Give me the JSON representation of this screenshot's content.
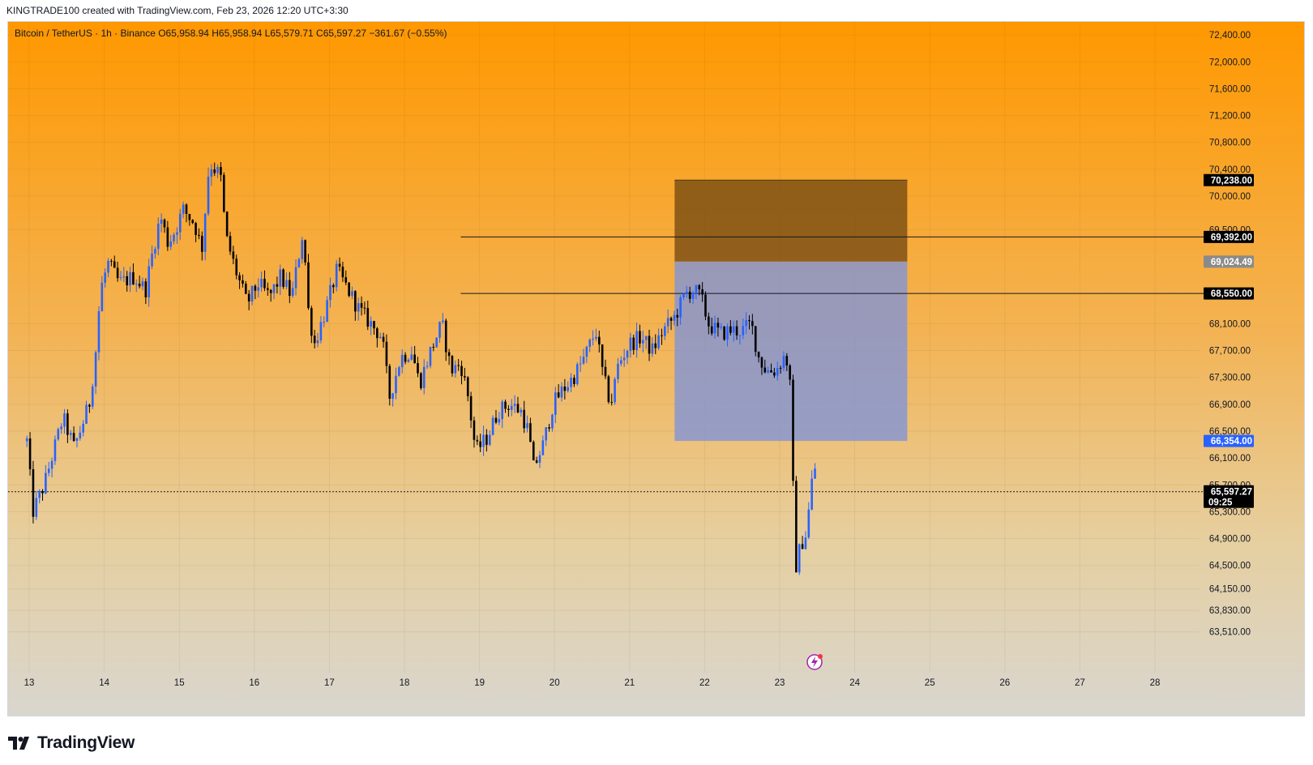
{
  "header": {
    "credit": "KINGTRADE100 created with TradingView.com, Feb 23, 2026 12:20 UTC+3:30",
    "legend": "Bitcoin / TetherUS · 1h · Binance  O65,958.94  H65,958.94  L65,579.71  C65,597.27  −361.67 (−0.55%)"
  },
  "brand": {
    "name": "TradingView",
    "icon": "tradingview-logo-icon"
  },
  "chart_data": {
    "type": "candlestick",
    "symbol": "Bitcoin / TetherUS",
    "interval": "1h",
    "exchange": "Binance",
    "ohlc_last": {
      "open": 65958.94,
      "high": 65958.94,
      "low": 65579.71,
      "close": 65597.27,
      "change": -361.67,
      "change_pct": -0.55
    },
    "x_ticks": [
      "13",
      "14",
      "15",
      "16",
      "17",
      "18",
      "19",
      "20",
      "21",
      "22",
      "23",
      "24",
      "25",
      "26",
      "27",
      "28"
    ],
    "y_ticks": [
      "72,400.00",
      "72,000.00",
      "71,600.00",
      "71,200.00",
      "70,800.00",
      "70,400.00",
      "70,000.00",
      "69,500.00",
      "68,100.00",
      "67,700.00",
      "67,300.00",
      "66,900.00",
      "66,500.00",
      "66,100.00",
      "65,700.00",
      "65,300.00",
      "64,900.00",
      "64,500.00",
      "64,150.00",
      "63,830.00",
      "63,510.00"
    ],
    "y_range": [
      63400,
      72600
    ],
    "horizontal_lines": [
      {
        "price": 69392.0,
        "label": "69,392.00",
        "start_day": 18.75
      },
      {
        "price": 68550.0,
        "label": "68,550.00",
        "start_day": 18.75
      }
    ],
    "position": {
      "type": "short",
      "start_day": 21.6,
      "end_day": 24.7,
      "stop": 70238.0,
      "stop_label": "70,238.00",
      "entry": 69024.49,
      "entry_label": "69,024.49",
      "target": 66354.0,
      "target_label": "66,354.00",
      "stop_color": "#7a4e13",
      "target_color": "#7f93d8"
    },
    "last_price": {
      "label": "65,597.27",
      "countdown": "09:25",
      "value": 65597.27
    },
    "anchors": [
      {
        "d": 12.97,
        "p": 66350
      },
      {
        "d": 13.05,
        "p": 65300
      },
      {
        "d": 13.2,
        "p": 65700
      },
      {
        "d": 13.45,
        "p": 66700
      },
      {
        "d": 13.6,
        "p": 66250
      },
      {
        "d": 13.8,
        "p": 66900
      },
      {
        "d": 13.88,
        "p": 67600
      },
      {
        "d": 13.95,
        "p": 68600
      },
      {
        "d": 14.05,
        "p": 69000
      },
      {
        "d": 14.2,
        "p": 68700
      },
      {
        "d": 14.4,
        "p": 68800
      },
      {
        "d": 14.55,
        "p": 68600
      },
      {
        "d": 14.65,
        "p": 69200
      },
      {
        "d": 14.75,
        "p": 69700
      },
      {
        "d": 14.85,
        "p": 69300
      },
      {
        "d": 14.95,
        "p": 69500
      },
      {
        "d": 15.05,
        "p": 69800
      },
      {
        "d": 15.2,
        "p": 69600
      },
      {
        "d": 15.3,
        "p": 69200
      },
      {
        "d": 15.4,
        "p": 70500
      },
      {
        "d": 15.55,
        "p": 70300
      },
      {
        "d": 15.62,
        "p": 69400
      },
      {
        "d": 15.75,
        "p": 68900
      },
      {
        "d": 15.9,
        "p": 68400
      },
      {
        "d": 16.05,
        "p": 68700
      },
      {
        "d": 16.2,
        "p": 68500
      },
      {
        "d": 16.35,
        "p": 68800
      },
      {
        "d": 16.5,
        "p": 68500
      },
      {
        "d": 16.65,
        "p": 69500
      },
      {
        "d": 16.72,
        "p": 68300
      },
      {
        "d": 16.8,
        "p": 67800
      },
      {
        "d": 16.95,
        "p": 68300
      },
      {
        "d": 17.1,
        "p": 68900
      },
      {
        "d": 17.25,
        "p": 68600
      },
      {
        "d": 17.4,
        "p": 68300
      },
      {
        "d": 17.55,
        "p": 68100
      },
      {
        "d": 17.7,
        "p": 67900
      },
      {
        "d": 17.8,
        "p": 67000
      },
      {
        "d": 17.95,
        "p": 67600
      },
      {
        "d": 18.1,
        "p": 67700
      },
      {
        "d": 18.2,
        "p": 67200
      },
      {
        "d": 18.35,
        "p": 67700
      },
      {
        "d": 18.5,
        "p": 68100
      },
      {
        "d": 18.62,
        "p": 67400
      },
      {
        "d": 18.75,
        "p": 67500
      },
      {
        "d": 18.85,
        "p": 67000
      },
      {
        "d": 18.95,
        "p": 66200
      },
      {
        "d": 19.1,
        "p": 66400
      },
      {
        "d": 19.25,
        "p": 66800
      },
      {
        "d": 19.4,
        "p": 66900
      },
      {
        "d": 19.55,
        "p": 66800
      },
      {
        "d": 19.65,
        "p": 66500
      },
      {
        "d": 19.72,
        "p": 65950
      },
      {
        "d": 19.85,
        "p": 66300
      },
      {
        "d": 19.98,
        "p": 66900
      },
      {
        "d": 20.1,
        "p": 67100
      },
      {
        "d": 20.25,
        "p": 67300
      },
      {
        "d": 20.4,
        "p": 67600
      },
      {
        "d": 20.55,
        "p": 68000
      },
      {
        "d": 20.65,
        "p": 67300
      },
      {
        "d": 20.75,
        "p": 66900
      },
      {
        "d": 20.85,
        "p": 67500
      },
      {
        "d": 21.0,
        "p": 67800
      },
      {
        "d": 21.15,
        "p": 67900
      },
      {
        "d": 21.3,
        "p": 67700
      },
      {
        "d": 21.45,
        "p": 68000
      },
      {
        "d": 21.6,
        "p": 68200
      },
      {
        "d": 21.75,
        "p": 68550
      },
      {
        "d": 21.85,
        "p": 68600
      },
      {
        "d": 21.95,
        "p": 68500
      },
      {
        "d": 22.05,
        "p": 68100
      },
      {
        "d": 22.2,
        "p": 67950
      },
      {
        "d": 22.35,
        "p": 68000
      },
      {
        "d": 22.5,
        "p": 68000
      },
      {
        "d": 22.62,
        "p": 68100
      },
      {
        "d": 22.72,
        "p": 67600
      },
      {
        "d": 22.82,
        "p": 67400
      },
      {
        "d": 22.95,
        "p": 67400
      },
      {
        "d": 23.05,
        "p": 67600
      },
      {
        "d": 23.12,
        "p": 67500
      },
      {
        "d": 23.16,
        "p": 66700
      },
      {
        "d": 23.2,
        "p": 64400
      },
      {
        "d": 23.28,
        "p": 64800
      },
      {
        "d": 23.36,
        "p": 65000
      },
      {
        "d": 23.42,
        "p": 65700
      },
      {
        "d": 23.47,
        "p": 65950
      }
    ]
  },
  "icons": {
    "bolt": "lightning-icon"
  }
}
